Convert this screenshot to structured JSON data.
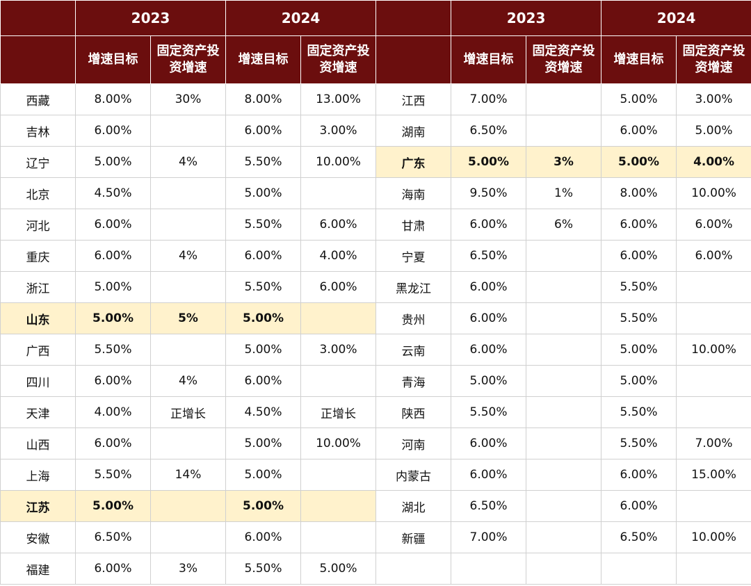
{
  "header": {
    "year_2023": "2023",
    "year_2024": "2024",
    "col_target": "增速目标",
    "col_invest": "固定资产投资增速"
  },
  "colors": {
    "header_bg": "#6b0e0e",
    "highlight_bg": "#fff2cc"
  },
  "left": [
    {
      "province": "西藏",
      "t23": "8.00%",
      "i23": "30%",
      "t24": "8.00%",
      "i24": "13.00%",
      "highlight": false
    },
    {
      "province": "吉林",
      "t23": "6.00%",
      "i23": "",
      "t24": "6.00%",
      "i24": "3.00%",
      "highlight": false
    },
    {
      "province": "辽宁",
      "t23": "5.00%",
      "i23": "4%",
      "t24": "5.50%",
      "i24": "10.00%",
      "highlight": false
    },
    {
      "province": "北京",
      "t23": "4.50%",
      "i23": "",
      "t24": "5.00%",
      "i24": "",
      "highlight": false
    },
    {
      "province": "河北",
      "t23": "6.00%",
      "i23": "",
      "t24": "5.50%",
      "i24": "6.00%",
      "highlight": false
    },
    {
      "province": "重庆",
      "t23": "6.00%",
      "i23": "4%",
      "t24": "6.00%",
      "i24": "4.00%",
      "highlight": false
    },
    {
      "province": "浙江",
      "t23": "5.00%",
      "i23": "",
      "t24": "5.50%",
      "i24": "6.00%",
      "highlight": false
    },
    {
      "province": "山东",
      "t23": "5.00%",
      "i23": "5%",
      "t24": "5.00%",
      "i24": "",
      "highlight": true
    },
    {
      "province": "广西",
      "t23": "5.50%",
      "i23": "",
      "t24": "5.00%",
      "i24": "3.00%",
      "highlight": false
    },
    {
      "province": "四川",
      "t23": "6.00%",
      "i23": "4%",
      "t24": "6.00%",
      "i24": "",
      "highlight": false
    },
    {
      "province": "天津",
      "t23": "4.00%",
      "i23": "正增长",
      "t24": "4.50%",
      "i24": "正增长",
      "highlight": false
    },
    {
      "province": "山西",
      "t23": "6.00%",
      "i23": "",
      "t24": "5.00%",
      "i24": "10.00%",
      "highlight": false
    },
    {
      "province": "上海",
      "t23": "5.50%",
      "i23": "14%",
      "t24": "5.00%",
      "i24": "",
      "highlight": false
    },
    {
      "province": "江苏",
      "t23": "5.00%",
      "i23": "",
      "t24": "5.00%",
      "i24": "",
      "highlight": true
    },
    {
      "province": "安徽",
      "t23": "6.50%",
      "i23": "",
      "t24": "6.00%",
      "i24": "",
      "highlight": false
    },
    {
      "province": "福建",
      "t23": "6.00%",
      "i23": "3%",
      "t24": "5.50%",
      "i24": "5.00%",
      "highlight": false
    }
  ],
  "right": [
    {
      "province": "江西",
      "t23": "7.00%",
      "i23": "",
      "t24": "5.00%",
      "i24": "3.00%",
      "highlight": false
    },
    {
      "province": "湖南",
      "t23": "6.50%",
      "i23": "",
      "t24": "6.00%",
      "i24": "5.00%",
      "highlight": false
    },
    {
      "province": "广东",
      "t23": "5.00%",
      "i23": "3%",
      "t24": "5.00%",
      "i24": "4.00%",
      "highlight": true
    },
    {
      "province": "海南",
      "t23": "9.50%",
      "i23": "1%",
      "t24": "8.00%",
      "i24": "10.00%",
      "highlight": false
    },
    {
      "province": "甘肃",
      "t23": "6.00%",
      "i23": "6%",
      "t24": "6.00%",
      "i24": "6.00%",
      "highlight": false
    },
    {
      "province": "宁夏",
      "t23": "6.50%",
      "i23": "",
      "t24": "6.00%",
      "i24": "6.00%",
      "highlight": false
    },
    {
      "province": "黑龙江",
      "t23": "6.00%",
      "i23": "",
      "t24": "5.50%",
      "i24": "",
      "highlight": false
    },
    {
      "province": "贵州",
      "t23": "6.00%",
      "i23": "",
      "t24": "5.50%",
      "i24": "",
      "highlight": false
    },
    {
      "province": "云南",
      "t23": "6.00%",
      "i23": "",
      "t24": "5.00%",
      "i24": "10.00%",
      "highlight": false
    },
    {
      "province": "青海",
      "t23": "5.00%",
      "i23": "",
      "t24": "5.00%",
      "i24": "",
      "highlight": false
    },
    {
      "province": "陕西",
      "t23": "5.50%",
      "i23": "",
      "t24": "5.50%",
      "i24": "",
      "highlight": false
    },
    {
      "province": "河南",
      "t23": "6.00%",
      "i23": "",
      "t24": "5.50%",
      "i24": "7.00%",
      "highlight": false
    },
    {
      "province": "内蒙古",
      "t23": "6.00%",
      "i23": "",
      "t24": "6.00%",
      "i24": "15.00%",
      "highlight": false
    },
    {
      "province": "湖北",
      "t23": "6.50%",
      "i23": "",
      "t24": "6.00%",
      "i24": "",
      "highlight": false
    },
    {
      "province": "新疆",
      "t23": "7.00%",
      "i23": "",
      "t24": "6.50%",
      "i24": "10.00%",
      "highlight": false
    },
    {
      "province": "",
      "t23": "",
      "i23": "",
      "t24": "",
      "i24": "",
      "highlight": false
    }
  ]
}
